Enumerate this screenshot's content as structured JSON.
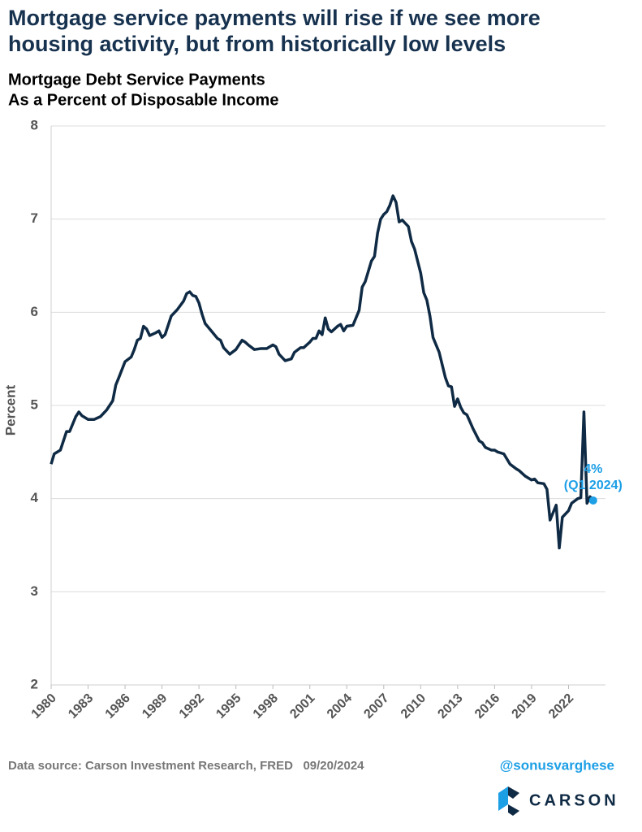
{
  "chart_data": {
    "type": "line",
    "title": "Mortgage service payments will rise if we see more housing activity, but from historically low levels",
    "subtitle": [
      "Mortgage Debt Service Payments",
      "As a Percent of Disposable Income"
    ],
    "ylabel": "Percent",
    "x": [
      1980.0,
      1980.25,
      1980.75,
      1981.25,
      1981.5,
      1982.0,
      1982.25,
      1982.5,
      1983.0,
      1983.5,
      1984.0,
      1984.5,
      1985.0,
      1985.25,
      1985.5,
      1986.0,
      1986.5,
      1986.75,
      1987.0,
      1987.25,
      1987.5,
      1987.75,
      1988.0,
      1988.5,
      1988.75,
      1989.0,
      1989.25,
      1989.75,
      1990.25,
      1990.75,
      1991.0,
      1991.25,
      1991.5,
      1991.75,
      1992.0,
      1992.25,
      1992.5,
      1993.0,
      1993.5,
      1993.75,
      1994.0,
      1994.5,
      1995.0,
      1995.5,
      1995.75,
      1996.0,
      1996.5,
      1997.0,
      1997.5,
      1998.0,
      1998.25,
      1998.5,
      1999.0,
      1999.5,
      1999.75,
      2000.25,
      2000.5,
      2001.0,
      2001.25,
      2001.5,
      2001.75,
      2002.0,
      2002.25,
      2002.5,
      2002.75,
      2003.25,
      2003.5,
      2003.75,
      2004.0,
      2004.5,
      2005.0,
      2005.25,
      2005.5,
      2006.0,
      2006.25,
      2006.5,
      2006.75,
      2007.0,
      2007.25,
      2007.5,
      2007.75,
      2008.0,
      2008.25,
      2008.5,
      2009.0,
      2009.25,
      2009.5,
      2010.0,
      2010.25,
      2010.5,
      2010.75,
      2011.0,
      2011.5,
      2012.0,
      2012.25,
      2012.5,
      2012.75,
      2013.0,
      2013.25,
      2013.5,
      2013.75,
      2014.25,
      2014.75,
      2015.0,
      2015.25,
      2015.75,
      2016.0,
      2016.25,
      2016.75,
      2017.25,
      2017.75,
      2018.0,
      2018.5,
      2019.0,
      2019.25,
      2019.5,
      2020.0,
      2020.25,
      2020.5,
      2020.75,
      2021.0,
      2021.25,
      2021.5,
      2022.0,
      2022.25,
      2022.75,
      2023.0,
      2023.25,
      2023.5,
      2023.75,
      2024.0
    ],
    "series": [
      {
        "name": "Mortgage Debt Service Payments",
        "color": "#0f2a44",
        "values": [
          4.37,
          4.48,
          4.52,
          4.72,
          4.72,
          4.88,
          4.93,
          4.89,
          4.85,
          4.85,
          4.88,
          4.95,
          5.05,
          5.22,
          5.3,
          5.47,
          5.52,
          5.6,
          5.7,
          5.72,
          5.85,
          5.82,
          5.75,
          5.78,
          5.8,
          5.73,
          5.76,
          5.96,
          6.03,
          6.12,
          6.2,
          6.22,
          6.18,
          6.17,
          6.1,
          5.98,
          5.88,
          5.8,
          5.72,
          5.7,
          5.62,
          5.55,
          5.6,
          5.7,
          5.68,
          5.65,
          5.6,
          5.61,
          5.61,
          5.65,
          5.63,
          5.55,
          5.48,
          5.5,
          5.57,
          5.62,
          5.62,
          5.68,
          5.72,
          5.72,
          5.8,
          5.76,
          5.94,
          5.82,
          5.79,
          5.85,
          5.87,
          5.8,
          5.85,
          5.86,
          6.02,
          6.27,
          6.33,
          6.55,
          6.6,
          6.85,
          7.0,
          7.05,
          7.08,
          7.15,
          7.25,
          7.18,
          6.97,
          6.99,
          6.92,
          6.76,
          6.68,
          6.42,
          6.21,
          6.13,
          5.96,
          5.73,
          5.57,
          5.3,
          5.21,
          5.2,
          4.99,
          5.07,
          4.98,
          4.92,
          4.9,
          4.75,
          4.62,
          4.6,
          4.55,
          4.52,
          4.52,
          4.5,
          4.48,
          4.37,
          4.32,
          4.3,
          4.24,
          4.2,
          4.21,
          4.17,
          4.16,
          4.1,
          3.77,
          3.85,
          3.93,
          3.47,
          3.8,
          3.87,
          3.95,
          4.0,
          4.01,
          4.93,
          3.95,
          4.02,
          3.98
        ]
      }
    ],
    "highlight_color": "#1d9fe6",
    "annotation": [
      "4%",
      "(Q1 2024)"
    ],
    "xlim": [
      1980,
      2025
    ],
    "xticks": [
      1980,
      1983,
      1986,
      1989,
      1992,
      1995,
      1998,
      2001,
      2004,
      2007,
      2010,
      2013,
      2016,
      2019,
      2022
    ],
    "ylim": [
      2,
      8
    ],
    "yticks": [
      2,
      3,
      4,
      5,
      6,
      7,
      8
    ],
    "grid": true,
    "source": "Data source: Carson Investment Research, FRED   09/20/2024",
    "handle": "@sonusvarghese",
    "brand": "CARSON"
  }
}
